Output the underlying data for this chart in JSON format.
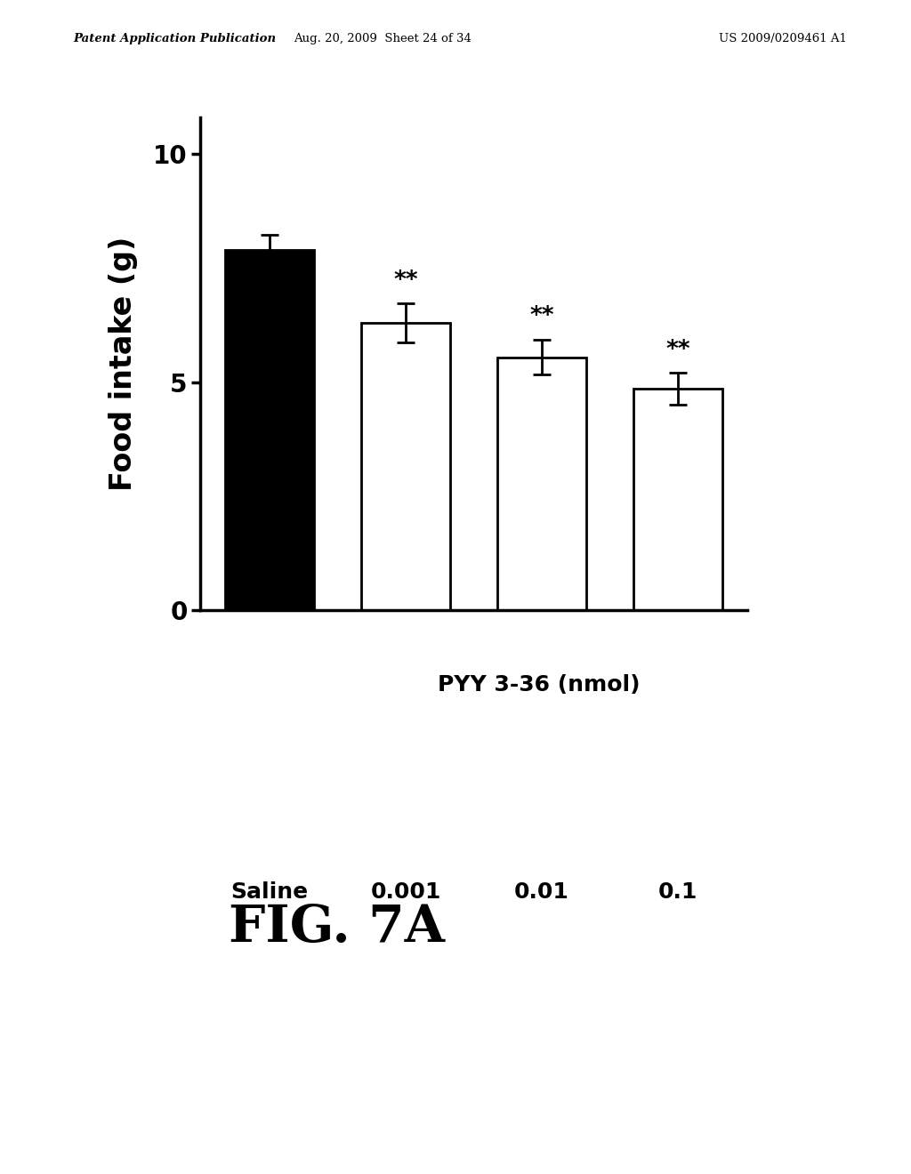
{
  "categories": [
    "Saline",
    "0.001",
    "0.01",
    "0.1"
  ],
  "values": [
    7.9,
    6.3,
    5.55,
    4.85
  ],
  "errors": [
    0.32,
    0.42,
    0.38,
    0.35
  ],
  "bar_colors": [
    "#000000",
    "#ffffff",
    "#ffffff",
    "#ffffff"
  ],
  "bar_edgecolors": [
    "#000000",
    "#000000",
    "#000000",
    "#000000"
  ],
  "significance": [
    false,
    true,
    true,
    true
  ],
  "sig_label": "**",
  "ylabel": "Food intake (g)",
  "xlabel_line1": "Saline 0.001  0.01    0.1",
  "xlabel_line2": "PYY 3-36 (nmol)",
  "yticks": [
    0,
    5,
    10
  ],
  "ylim": [
    0,
    10.8
  ],
  "figure_title": "FIG. 7A",
  "header_left": "Patent Application Publication",
  "header_center": "Aug. 20, 2009  Sheet 24 of 34",
  "header_right": "US 2009/0209461 A1",
  "bar_width": 0.65,
  "background_color": "#ffffff"
}
